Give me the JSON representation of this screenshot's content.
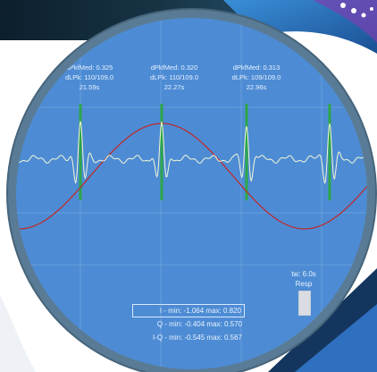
{
  "colors": {
    "plot_bg": "#4d8cd4",
    "grid": "#6fa3df",
    "ecg_trace": "#f4f7d6",
    "resp_curve": "#c12727",
    "beat_marker": "#2ea64a",
    "frame": "#5a7b95"
  },
  "peaks": [
    {
      "dpkfmed": "dPkfMed: 0.325",
      "dlpk": "dLPk: 110/109.0",
      "time": "21.59s"
    },
    {
      "dpkfmed": "dPkfMed: 0.320",
      "dlpk": "dLPk: 110/109.0",
      "time": "22.27s"
    },
    {
      "dpkfmed": "dPkfMed: 0.313",
      "dlpk": "dLPk: 109/109.0",
      "time": "22.96s"
    }
  ],
  "time_window": {
    "label": "tw: 6.0s",
    "channel": "Resp"
  },
  "stats": {
    "i": "I - min: -1.064  max: 0.820",
    "q": "Q - min: -0.404  max: 0.570",
    "iq": "I-Q - min: -0.545  max: 0.567"
  }
}
